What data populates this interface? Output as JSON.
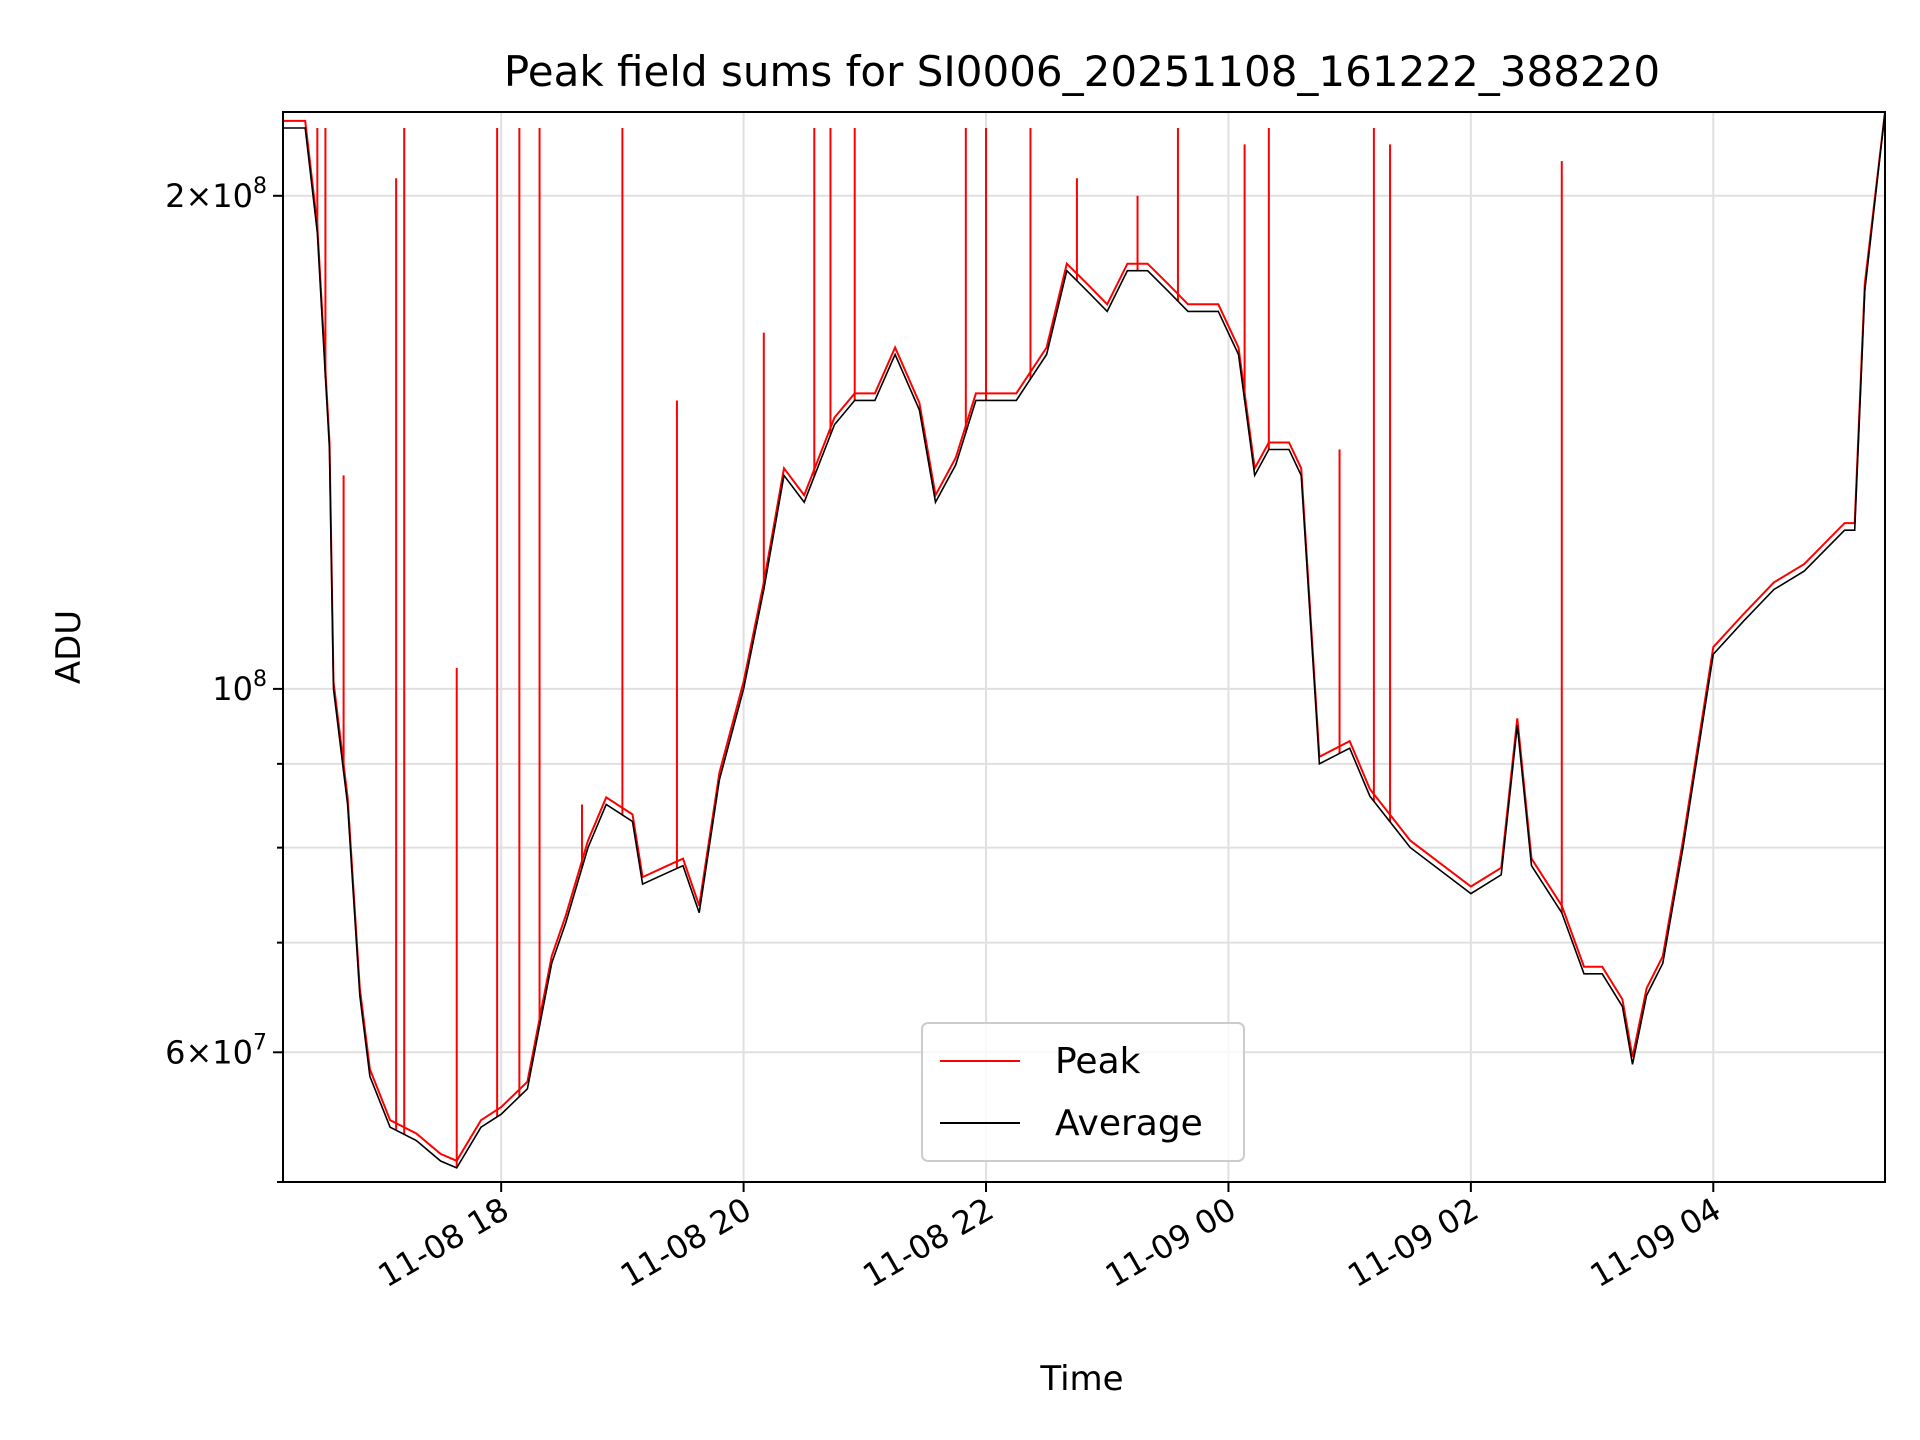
{
  "chart_data": {
    "type": "line",
    "title": "Peak field sums for SI0006_20251108_161222_388220",
    "xlabel": "Time",
    "ylabel": "ADU",
    "y_scale": "log",
    "ylim": [
      50000000,
      225000000
    ],
    "xlim": [
      "2025-11-08 16:12",
      "2025-11-09 05:25"
    ],
    "grid": true,
    "legend_position": "lower center",
    "x_ticks": [
      {
        "t": "2025-11-08 18:00",
        "label": "11-08 18"
      },
      {
        "t": "2025-11-08 20:00",
        "label": "11-08 20"
      },
      {
        "t": "2025-11-08 22:00",
        "label": "11-08 22"
      },
      {
        "t": "2025-11-09 00:00",
        "label": "11-09 00"
      },
      {
        "t": "2025-11-09 02:00",
        "label": "11-09 02"
      },
      {
        "t": "2025-11-09 04:00",
        "label": "11-09 04"
      }
    ],
    "y_major_ticks": [
      {
        "value": 60000000,
        "mantissa": "6",
        "exp": "7"
      },
      {
        "value": 100000000,
        "mantissa": "",
        "exp": "8"
      },
      {
        "value": 200000000,
        "mantissa": "2",
        "exp": "8"
      }
    ],
    "y_minor_ticks": [
      50000000,
      70000000,
      80000000,
      90000000,
      300000000
    ],
    "series": [
      {
        "name": "Peak",
        "color": "#ff0000"
      },
      {
        "name": "Average",
        "color": "#000000"
      }
    ],
    "average": {
      "x": [
        "2025-11-08 16:12",
        "2025-11-08 16:23",
        "2025-11-08 16:29",
        "2025-11-08 16:35",
        "2025-11-08 16:37",
        "2025-11-08 16:44",
        "2025-11-08 16:50",
        "2025-11-08 16:55",
        "2025-11-08 17:05",
        "2025-11-08 17:18",
        "2025-11-08 17:30",
        "2025-11-08 17:38",
        "2025-11-08 17:50",
        "2025-11-08 18:00",
        "2025-11-08 18:13",
        "2025-11-08 18:25",
        "2025-11-08 18:32",
        "2025-11-08 18:43",
        "2025-11-08 18:52",
        "2025-11-08 19:05",
        "2025-11-08 19:10",
        "2025-11-08 19:20",
        "2025-11-08 19:30",
        "2025-11-08 19:38",
        "2025-11-08 19:48",
        "2025-11-08 20:00",
        "2025-11-08 20:10",
        "2025-11-08 20:20",
        "2025-11-08 20:30",
        "2025-11-08 20:45",
        "2025-11-08 20:55",
        "2025-11-08 21:05",
        "2025-11-08 21:15",
        "2025-11-08 21:27",
        "2025-11-08 21:35",
        "2025-11-08 21:45",
        "2025-11-08 21:55",
        "2025-11-08 22:05",
        "2025-11-08 22:15",
        "2025-11-08 22:30",
        "2025-11-08 22:40",
        "2025-11-08 22:50",
        "2025-11-08 23:00",
        "2025-11-08 23:10",
        "2025-11-08 23:20",
        "2025-11-08 23:30",
        "2025-11-08 23:40",
        "2025-11-08 23:55",
        "2025-11-09 00:05",
        "2025-11-09 00:13",
        "2025-11-09 00:20",
        "2025-11-09 00:30",
        "2025-11-09 00:36",
        "2025-11-09 00:45",
        "2025-11-09 01:00",
        "2025-11-09 01:10",
        "2025-11-09 01:30",
        "2025-11-09 02:00",
        "2025-11-09 02:15",
        "2025-11-09 02:23",
        "2025-11-09 02:30",
        "2025-11-09 02:45",
        "2025-11-09 02:56",
        "2025-11-09 03:05",
        "2025-11-09 03:15",
        "2025-11-09 03:20",
        "2025-11-09 03:27",
        "2025-11-09 03:35",
        "2025-11-09 03:45",
        "2025-11-09 04:00",
        "2025-11-09 04:15",
        "2025-11-09 04:30",
        "2025-11-09 04:45",
        "2025-11-09 05:05",
        "2025-11-09 05:10",
        "2025-11-09 05:15",
        "2025-11-09 05:25"
      ],
      "y": [
        220000000,
        220000000,
        190000000,
        140000000,
        100000000,
        85000000,
        65000000,
        58000000,
        54000000,
        53000000,
        51500000,
        51000000,
        54000000,
        55000000,
        57000000,
        68000000,
        72000000,
        80000000,
        85000000,
        83000000,
        76000000,
        77000000,
        78000000,
        73000000,
        88000000,
        100000000,
        115000000,
        135000000,
        130000000,
        145000000,
        150000000,
        150000000,
        160000000,
        148000000,
        130000000,
        137000000,
        150000000,
        150000000,
        150000000,
        160000000,
        180000000,
        175000000,
        170000000,
        180000000,
        180000000,
        175000000,
        170000000,
        170000000,
        160000000,
        135000000,
        140000000,
        140000000,
        135000000,
        90000000,
        92000000,
        86000000,
        80000000,
        75000000,
        77000000,
        95000000,
        78000000,
        73000000,
        67000000,
        67000000,
        64000000,
        59000000,
        65000000,
        68000000,
        80000000,
        105000000,
        110000000,
        115000000,
        118000000,
        125000000,
        125000000,
        175000000,
        225000000
      ]
    },
    "peak_spikes": [
      {
        "x": "2025-11-08 16:29",
        "y": 220000000
      },
      {
        "x": "2025-11-08 16:33",
        "y": 220000000
      },
      {
        "x": "2025-11-08 16:42",
        "y": 135000000
      },
      {
        "x": "2025-11-08 17:08",
        "y": 205000000
      },
      {
        "x": "2025-11-08 17:12",
        "y": 220000000
      },
      {
        "x": "2025-11-08 17:38",
        "y": 103000000
      },
      {
        "x": "2025-11-08 17:58",
        "y": 220000000
      },
      {
        "x": "2025-11-08 18:09",
        "y": 220000000
      },
      {
        "x": "2025-11-08 18:19",
        "y": 220000000
      },
      {
        "x": "2025-11-08 18:40",
        "y": 85000000
      },
      {
        "x": "2025-11-08 19:00",
        "y": 220000000
      },
      {
        "x": "2025-11-08 19:27",
        "y": 150000000
      },
      {
        "x": "2025-11-08 20:10",
        "y": 165000000
      },
      {
        "x": "2025-11-08 20:35",
        "y": 220000000
      },
      {
        "x": "2025-11-08 20:43",
        "y": 220000000
      },
      {
        "x": "2025-11-08 20:55",
        "y": 220000000
      },
      {
        "x": "2025-11-08 21:50",
        "y": 220000000
      },
      {
        "x": "2025-11-08 22:00",
        "y": 220000000
      },
      {
        "x": "2025-11-08 22:22",
        "y": 220000000
      },
      {
        "x": "2025-11-08 22:45",
        "y": 205000000
      },
      {
        "x": "2025-11-08 23:15",
        "y": 200000000
      },
      {
        "x": "2025-11-08 23:35",
        "y": 220000000
      },
      {
        "x": "2025-11-09 00:08",
        "y": 215000000
      },
      {
        "x": "2025-11-09 00:20",
        "y": 220000000
      },
      {
        "x": "2025-11-09 00:55",
        "y": 140000000
      },
      {
        "x": "2025-11-09 01:12",
        "y": 220000000
      },
      {
        "x": "2025-11-09 01:20",
        "y": 215000000
      },
      {
        "x": "2025-11-09 02:45",
        "y": 210000000
      }
    ]
  }
}
